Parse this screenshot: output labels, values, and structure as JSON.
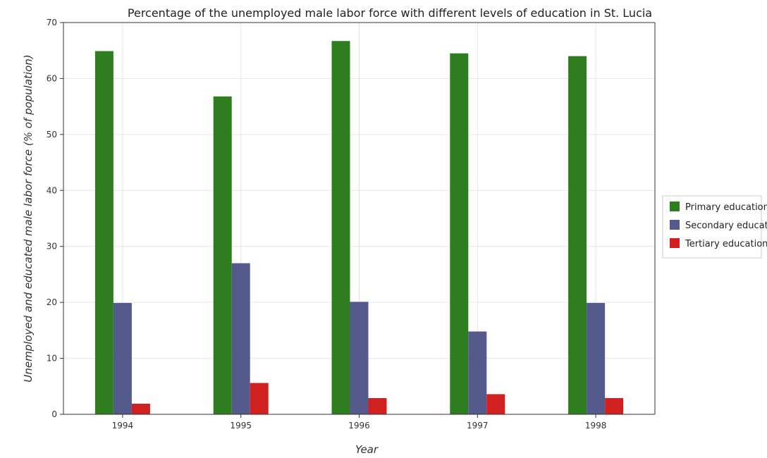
{
  "chart_data": {
    "type": "bar",
    "title": "Percentage of the unemployed male labor force with different levels of education in St. Lucia",
    "xlabel": "Year",
    "ylabel": "Unemployed and educated male labor force (% of population)",
    "categories": [
      "1994",
      "1995",
      "1996",
      "1997",
      "1998"
    ],
    "series": [
      {
        "name": "Primary education",
        "color": "#2e7d1e",
        "values": [
          64.9,
          56.8,
          66.7,
          64.5,
          64.0
        ]
      },
      {
        "name": "Secondary education",
        "color": "#555a8c",
        "values": [
          19.9,
          27.0,
          20.1,
          14.8,
          19.9
        ]
      },
      {
        "name": "Tertiary education",
        "color": "#d12020",
        "values": [
          1.9,
          5.6,
          2.9,
          3.6,
          2.9
        ]
      }
    ],
    "ylim": [
      0,
      70
    ],
    "yticks": [
      0,
      10,
      20,
      30,
      40,
      50,
      60,
      70
    ],
    "grid": true,
    "legend_position": "right"
  }
}
